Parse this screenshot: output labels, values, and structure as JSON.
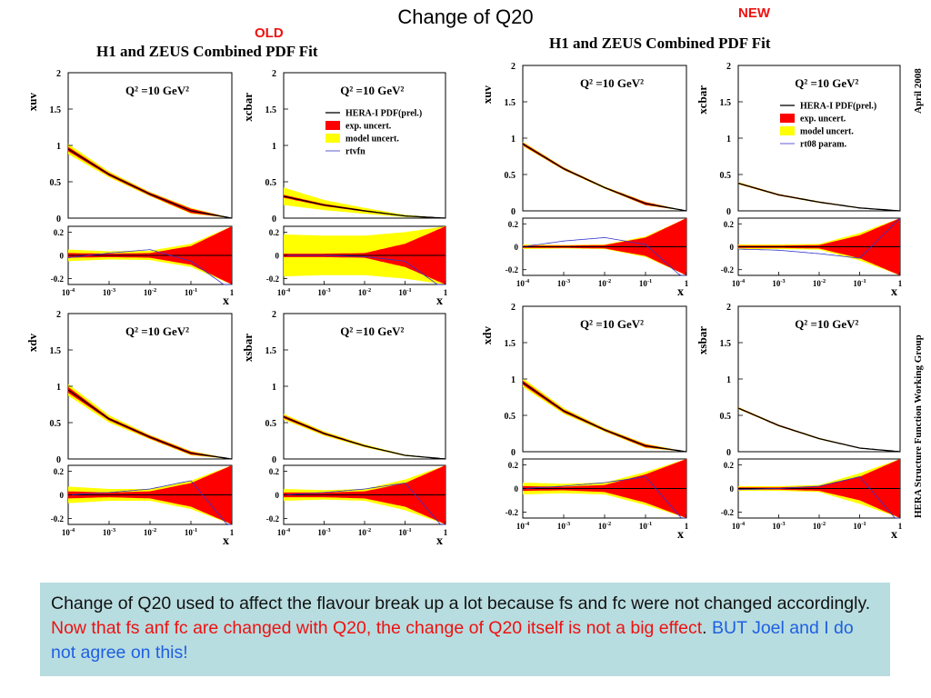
{
  "slide": {
    "title": "Change of Q20",
    "old_label": "OLD",
    "new_label": "NEW",
    "old_figure_title": "H1 and ZEUS Combined PDF Fit",
    "new_figure_title": "H1 and ZEUS Combined PDF Fit",
    "side_date": "April 2008",
    "side_group": "HERA Structure Function Working Group"
  },
  "note": {
    "part1": "Change of Q20 used to affect the flavour break up a lot because fs and fc were not changed accordingly. ",
    "part2_red": "Now that fs anf fc are changed with Q20, the change of Q20 itself is not a big effect",
    "part3": ". ",
    "part4_blue": "BUT Joel and I do not agree on this!"
  },
  "colors": {
    "exp_band": "#ff0000",
    "model_band": "#ffff00",
    "central": "#000000",
    "param_curve": "#3333cc",
    "title_red": "#ee1111",
    "note_bg": "#b8dde0",
    "note_blue": "#1f5fe0"
  },
  "chart_data": [
    {
      "type": "area",
      "panel": "old-xuv",
      "ylabel": "xuv",
      "xlabel": "x",
      "scale_label": "Q² =10 GeV²",
      "xscale": "log",
      "xlim": [
        0.0001,
        1
      ],
      "xticks": [
        "10-4",
        "10-3",
        "10-2",
        "10-1",
        "1"
      ],
      "ylim": [
        0,
        2
      ],
      "yticks": [
        "0",
        "0.5",
        "1",
        "1.5",
        "2"
      ],
      "ratio_ylim": [
        -0.25,
        0.25
      ],
      "ratio_yticks": [
        "0.2",
        "0",
        "-0.2"
      ],
      "x": [
        0.0001,
        0.001,
        0.01,
        0.1,
        1
      ],
      "central": [
        0.95,
        0.6,
        0.33,
        0.1,
        0
      ],
      "exp_band_halfwidth": [
        0.03,
        0.02,
        0.02,
        0.03,
        0
      ],
      "model_band_halfwidth": [
        0.07,
        0.04,
        0.03,
        0.04,
        0
      ],
      "ratio_exp_halfwidth": [
        0.02,
        0.015,
        0.02,
        0.08,
        0.25
      ],
      "ratio_model_halfwidth": [
        0.05,
        0.035,
        0.04,
        0.1,
        0.25
      ],
      "ratio_param": [
        -0.02,
        0.02,
        0.05,
        -0.05,
        -0.3
      ]
    },
    {
      "type": "area",
      "panel": "old-xcbar",
      "ylabel": "xcbar",
      "xlabel": "x",
      "scale_label": "Q² =10 GeV²",
      "xscale": "log",
      "xlim": [
        0.0001,
        1
      ],
      "xticks": [
        "10-4",
        "10-3",
        "10-2",
        "10-1",
        "1"
      ],
      "ylim": [
        0,
        2
      ],
      "yticks": [
        "0",
        "0.5",
        "1",
        "1.5",
        "2"
      ],
      "ratio_ylim": [
        -0.25,
        0.25
      ],
      "ratio_yticks": [
        "0.2",
        "0",
        "-0.2"
      ],
      "legend": [
        "HERA-I PDF(prel.)",
        "exp. uncert.",
        "model uncert.",
        "rtvfn"
      ],
      "x": [
        0.0001,
        0.001,
        0.01,
        0.1,
        1
      ],
      "central": [
        0.3,
        0.18,
        0.1,
        0.03,
        0
      ],
      "exp_band_halfwidth": [
        0.02,
        0.015,
        0.01,
        0.005,
        0
      ],
      "model_band_halfwidth": [
        0.12,
        0.07,
        0.04,
        0.015,
        0
      ],
      "ratio_exp_halfwidth": [
        0.015,
        0.015,
        0.02,
        0.1,
        0.25
      ],
      "ratio_model_halfwidth": [
        0.18,
        0.17,
        0.17,
        0.2,
        0.25
      ],
      "ratio_param": [
        0.0,
        0.0,
        -0.01,
        -0.05,
        -0.3
      ]
    },
    {
      "type": "area",
      "panel": "old-xdv",
      "ylabel": "xdv",
      "xlabel": "x",
      "scale_label": "Q² =10 GeV²",
      "xscale": "log",
      "xlim": [
        0.0001,
        1
      ],
      "xticks": [
        "10-4",
        "10-3",
        "10-2",
        "10-1",
        "1"
      ],
      "ylim": [
        0,
        2
      ],
      "yticks": [
        "0",
        "0.5",
        "1",
        "1.5",
        "2"
      ],
      "ratio_ylim": [
        -0.25,
        0.25
      ],
      "ratio_yticks": [
        "0.2",
        "0",
        "-0.2"
      ],
      "x": [
        0.0001,
        0.001,
        0.01,
        0.1,
        1
      ],
      "central": [
        0.95,
        0.55,
        0.3,
        0.08,
        0
      ],
      "exp_band_halfwidth": [
        0.04,
        0.02,
        0.02,
        0.02,
        0
      ],
      "model_band_halfwidth": [
        0.08,
        0.05,
        0.03,
        0.03,
        0
      ],
      "ratio_exp_halfwidth": [
        0.03,
        0.02,
        0.03,
        0.1,
        0.25
      ],
      "ratio_model_halfwidth": [
        0.07,
        0.05,
        0.05,
        0.12,
        0.25
      ],
      "ratio_param": [
        0.0,
        0.02,
        0.05,
        0.12,
        -0.3
      ]
    },
    {
      "type": "area",
      "panel": "old-xsbar",
      "ylabel": "xsbar",
      "xlabel": "x",
      "scale_label": "Q² =10 GeV²",
      "xscale": "log",
      "xlim": [
        0.0001,
        1
      ],
      "xticks": [
        "10-4",
        "10-3",
        "10-2",
        "10-1",
        "1"
      ],
      "ylim": [
        0,
        2
      ],
      "yticks": [
        "0",
        "0.5",
        "1",
        "1.5",
        "2"
      ],
      "ratio_ylim": [
        -0.25,
        0.25
      ],
      "ratio_yticks": [
        "0.2",
        "0",
        "-0.2"
      ],
      "x": [
        0.0001,
        0.001,
        0.01,
        0.1,
        1
      ],
      "central": [
        0.58,
        0.35,
        0.18,
        0.05,
        0
      ],
      "exp_band_halfwidth": [
        0.02,
        0.015,
        0.01,
        0.005,
        0
      ],
      "model_band_halfwidth": [
        0.04,
        0.03,
        0.02,
        0.01,
        0
      ],
      "ratio_exp_halfwidth": [
        0.02,
        0.02,
        0.03,
        0.1,
        0.25
      ],
      "ratio_model_halfwidth": [
        0.05,
        0.04,
        0.05,
        0.13,
        0.25
      ],
      "ratio_param": [
        0.0,
        0.02,
        0.05,
        0.1,
        -0.3
      ]
    },
    {
      "type": "area",
      "panel": "new-xuv",
      "ylabel": "xuv",
      "xlabel": "x",
      "scale_label": "Q² =10 GeV²",
      "xscale": "log",
      "xlim": [
        0.0001,
        1
      ],
      "xticks": [
        "10-4",
        "10-3",
        "10-2",
        "10-1",
        "1"
      ],
      "ylim": [
        0,
        2
      ],
      "yticks": [
        "0",
        "0.5",
        "1",
        "1.5",
        "2"
      ],
      "ratio_ylim": [
        -0.25,
        0.25
      ],
      "ratio_yticks": [
        "0.2",
        "0",
        "-0.2"
      ],
      "x": [
        0.0001,
        0.001,
        0.01,
        0.1,
        1
      ],
      "central": [
        0.92,
        0.58,
        0.32,
        0.1,
        0
      ],
      "exp_band_halfwidth": [
        0.02,
        0.015,
        0.01,
        0.02,
        0
      ],
      "model_band_halfwidth": [
        0.03,
        0.02,
        0.015,
        0.025,
        0
      ],
      "ratio_exp_halfwidth": [
        0.01,
        0.01,
        0.015,
        0.08,
        0.25
      ],
      "ratio_model_halfwidth": [
        0.02,
        0.015,
        0.02,
        0.09,
        0.25
      ],
      "ratio_param": [
        0.0,
        0.05,
        0.08,
        0.02,
        -0.3
      ]
    },
    {
      "type": "area",
      "panel": "new-xcbar",
      "ylabel": "xcbar",
      "xlabel": "x",
      "scale_label": "Q² =10 GeV²",
      "xscale": "log",
      "xlim": [
        0.0001,
        1
      ],
      "xticks": [
        "10-4",
        "10-3",
        "10-2",
        "10-1",
        "1"
      ],
      "ylim": [
        0,
        2
      ],
      "yticks": [
        "0",
        "0.5",
        "1",
        "1.5",
        "2"
      ],
      "ratio_ylim": [
        -0.25,
        0.25
      ],
      "ratio_yticks": [
        "0.2",
        "0",
        "-0.2"
      ],
      "legend": [
        "HERA-I PDF(prel.)",
        "exp. uncert.",
        "model uncert.",
        "rt08 param."
      ],
      "x": [
        0.0001,
        0.001,
        0.01,
        0.1,
        1
      ],
      "central": [
        0.38,
        0.22,
        0.12,
        0.04,
        0
      ],
      "exp_band_halfwidth": [
        0.01,
        0.01,
        0.008,
        0.005,
        0
      ],
      "model_band_halfwidth": [
        0.015,
        0.012,
        0.01,
        0.006,
        0
      ],
      "ratio_exp_halfwidth": [
        0.01,
        0.01,
        0.015,
        0.1,
        0.25
      ],
      "ratio_model_halfwidth": [
        0.02,
        0.02,
        0.025,
        0.12,
        0.25
      ],
      "ratio_param": [
        -0.02,
        -0.03,
        -0.06,
        -0.1,
        0.25
      ]
    },
    {
      "type": "area",
      "panel": "new-xdv",
      "ylabel": "xdv",
      "xlabel": "x",
      "scale_label": "Q² =10 GeV²",
      "xscale": "log",
      "xlim": [
        0.0001,
        1
      ],
      "xticks": [
        "10-4",
        "10-3",
        "10-2",
        "10-1",
        "1"
      ],
      "ylim": [
        0,
        2
      ],
      "yticks": [
        "0",
        "0.5",
        "1",
        "1.5",
        "2"
      ],
      "ratio_ylim": [
        -0.25,
        0.25
      ],
      "ratio_yticks": [
        "0.2",
        "0",
        "-0.2"
      ],
      "x": [
        0.0001,
        0.001,
        0.01,
        0.1,
        1
      ],
      "central": [
        0.95,
        0.56,
        0.3,
        0.08,
        0
      ],
      "exp_band_halfwidth": [
        0.03,
        0.02,
        0.015,
        0.02,
        0
      ],
      "model_band_halfwidth": [
        0.06,
        0.04,
        0.025,
        0.03,
        0
      ],
      "ratio_exp_halfwidth": [
        0.02,
        0.015,
        0.03,
        0.12,
        0.25
      ],
      "ratio_model_halfwidth": [
        0.05,
        0.04,
        0.05,
        0.14,
        0.25
      ],
      "ratio_param": [
        0.0,
        0.02,
        0.05,
        0.1,
        -0.3
      ]
    },
    {
      "type": "area",
      "panel": "new-xsbar",
      "ylabel": "xsbar",
      "xlabel": "x",
      "scale_label": "Q² =10 GeV²",
      "xscale": "log",
      "xlim": [
        0.0001,
        1
      ],
      "xticks": [
        "10-4",
        "10-3",
        "10-2",
        "10-1",
        "1"
      ],
      "ylim": [
        0,
        2
      ],
      "yticks": [
        "0",
        "0.5",
        "1",
        "1.5",
        "2"
      ],
      "ratio_ylim": [
        -0.25,
        0.25
      ],
      "ratio_yticks": [
        "0.2",
        "0",
        "-0.2"
      ],
      "x": [
        0.0001,
        0.001,
        0.01,
        0.1,
        1
      ],
      "central": [
        0.6,
        0.36,
        0.18,
        0.05,
        0
      ],
      "exp_band_halfwidth": [
        0.01,
        0.01,
        0.008,
        0.005,
        0
      ],
      "model_band_halfwidth": [
        0.015,
        0.012,
        0.01,
        0.006,
        0
      ],
      "ratio_exp_halfwidth": [
        0.01,
        0.01,
        0.02,
        0.1,
        0.25
      ],
      "ratio_model_halfwidth": [
        0.02,
        0.02,
        0.03,
        0.13,
        0.25
      ],
      "ratio_param": [
        -0.01,
        0.0,
        0.02,
        0.1,
        -0.3
      ]
    }
  ]
}
